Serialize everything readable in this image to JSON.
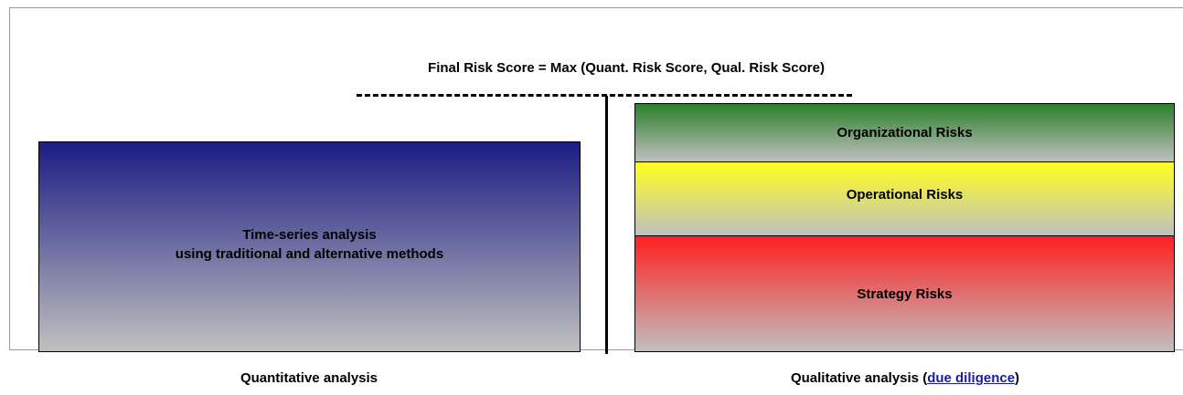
{
  "title": "Final Risk Score = Max (Quant. Risk Score, Qual. Risk Score)",
  "quantitative_box": {
    "lines": [
      "Time-series analysis",
      "using traditional and alternative methods"
    ]
  },
  "qualitative_boxes": [
    {
      "label": "Organizational Risks"
    },
    {
      "label": "Operational Risks"
    },
    {
      "label": "Strategy Risks"
    }
  ],
  "captions": {
    "quantitative": "Quantitative analysis",
    "qualitative": {
      "before": "Qualitative analysis (",
      "link": "due diligence",
      "after": ")"
    }
  }
}
